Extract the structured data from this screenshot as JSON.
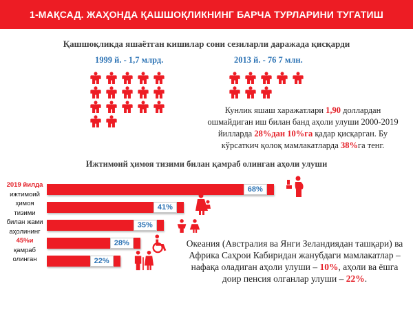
{
  "banner": {
    "title": "1-МАҚСАД. ЖАҲОНДА ҚАШШОҚЛИКНИНГ БАРЧА ТУРЛАРИНИ ТУГАТИШ"
  },
  "subtitle": "Қашшоқликда яшаётган кишилар сони сезиларли даражада қисқарди",
  "years": {
    "left": {
      "label": "1999 й. - 1,7 млрд.",
      "icon_count": 17
    },
    "right": {
      "label": "2013 й. - 76 7 млн.",
      "icon_count": 8
    }
  },
  "info1": {
    "p1": "Кунлик яшаш харажатлари ",
    "v1": "1,90",
    "p2": " доллардан ошмайдиган иш билан банд аҳоли улуши 2000-2019 йилларда ",
    "v2": "28%",
    "p3": "дан ",
    "v3": "10%",
    "p4": "га",
    "p5": " қадар қисқарган. Бу кўрсаткич қолоқ мамлакатларда ",
    "v4": "38%",
    "p6": "га тенг."
  },
  "section2": {
    "title": "Ижтимоий ҳимоя тизими билан қамраб олинган аҳоли улуши",
    "title_hidden": "Ижтимоий ҳимоя тизими билан қамраб олинган аҳоли улуши"
  },
  "leftcol": {
    "year": "2019 йилда",
    "l1": "ижтимоий",
    "l2": "ҳимоя",
    "l3": "тизими",
    "l4": "билан жами",
    "l5": "аҳолининг",
    "pct": "45%и",
    "l6": "қамраб",
    "l7": "олинган"
  },
  "chart_data": {
    "type": "bar",
    "values": [
      68,
      41,
      35,
      28,
      22
    ],
    "labels": [
      "68%",
      "41%",
      "35%",
      "28%",
      "22%"
    ],
    "icons": [
      "pregnant-woman-icon",
      "mother-child-icon",
      "children-icon",
      "wheelchair-icon",
      "elderly-icon"
    ]
  },
  "info2": {
    "p1": "Океания (Австралия ва Янги Зеландиядан ташқари) ва Африка Саҳрои Кабиридан жанубдаги мамлакатлар – нафақа оладиган аҳоли улуши – ",
    "v1": "10%",
    "p2": ", аҳоли ва ёшга доир пенсия олганлар улуши – ",
    "v2": "22%",
    "p3": "."
  },
  "colors": {
    "accent": "#ed1c24",
    "blue": "#2e74b5"
  }
}
